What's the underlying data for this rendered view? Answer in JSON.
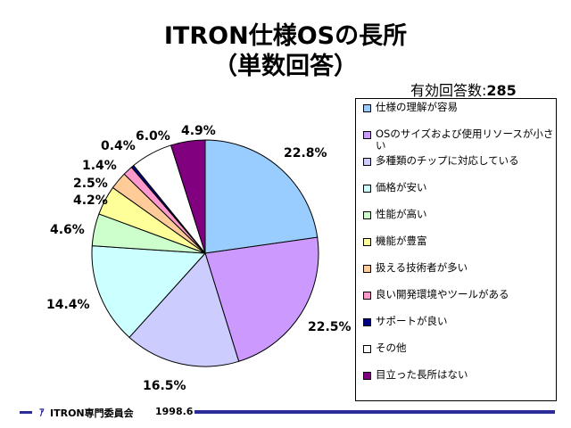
{
  "title_line1": "ITRON仕様OSの長所",
  "title_line2": "（単数回答）",
  "meta": {
    "label": "有効回答数:",
    "value": "285"
  },
  "footer": {
    "logo": "ｱ",
    "org": "ITRON専門委員会",
    "date": "1998.6"
  },
  "colors": {
    "slices": [
      "#99ccff",
      "#cc99ff",
      "#ccccff",
      "#ccffff",
      "#ccffcc",
      "#ffff99",
      "#ffcc99",
      "#ff99cc",
      "#000080",
      "#ffffff",
      "#800080"
    ],
    "footer_bar": "#2b2b9a"
  },
  "chart_data": {
    "type": "pie",
    "start": "12 o'clock, clockwise",
    "categories": [
      "仕様の理解が容易",
      "OSのサイズおよび使用リソースが小さい",
      "多種類のチップに対応している",
      "価格が安い",
      "性能が高い",
      "機能が豊富",
      "扱える技術者が多い",
      "良い開発環境やツールがある",
      "サポートが良い",
      "その他",
      "目立った長所はない"
    ],
    "values": [
      22.8,
      22.5,
      16.5,
      14.4,
      4.6,
      4.2,
      2.5,
      1.4,
      0.4,
      6.0,
      4.9
    ],
    "labels": [
      "22.8%",
      "22.5%",
      "16.5%",
      "14.4%",
      "4.6%",
      "4.2%",
      "2.5%",
      "1.4%",
      "0.4%",
      "6.0%",
      "4.9%"
    ],
    "legend_position": "right"
  }
}
